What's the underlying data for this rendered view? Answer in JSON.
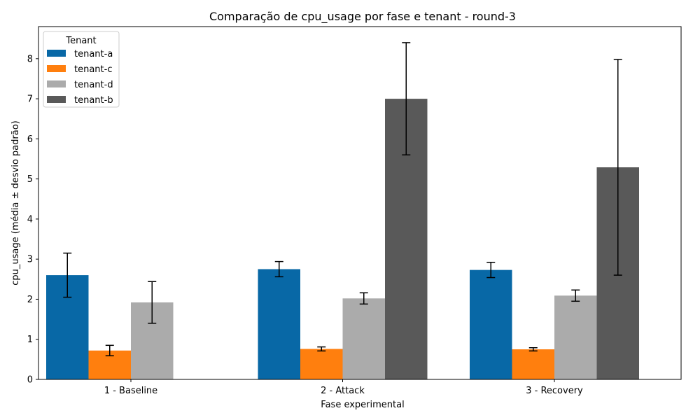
{
  "chart_data": {
    "type": "bar",
    "title": "Comparação de cpu_usage por fase e tenant - round-3",
    "xlabel": "Fase experimental",
    "ylabel": "cpu_usage (média ± desvio padrão)",
    "ylim": [
      0,
      8.8
    ],
    "yticks": [
      0,
      1,
      2,
      3,
      4,
      5,
      6,
      7,
      8
    ],
    "categories": [
      "1 - Baseline",
      "2 - Attack",
      "3 - Recovery"
    ],
    "legend_title": "Tenant",
    "legend_position": "top-left",
    "grid": false,
    "series": [
      {
        "name": "tenant-a",
        "color": "#0868a6",
        "values": [
          2.6,
          2.75,
          2.73
        ],
        "errors": [
          0.55,
          0.19,
          0.19
        ]
      },
      {
        "name": "tenant-c",
        "color": "#ff7f0e",
        "values": [
          0.72,
          0.76,
          0.75
        ],
        "errors": [
          0.13,
          0.05,
          0.04
        ]
      },
      {
        "name": "tenant-d",
        "color": "#ababab",
        "values": [
          1.92,
          2.02,
          2.09
        ],
        "errors": [
          0.52,
          0.14,
          0.14
        ]
      },
      {
        "name": "tenant-b",
        "color": "#595959",
        "values": [
          null,
          7.0,
          5.29
        ],
        "errors": [
          null,
          1.4,
          2.69
        ]
      }
    ]
  }
}
